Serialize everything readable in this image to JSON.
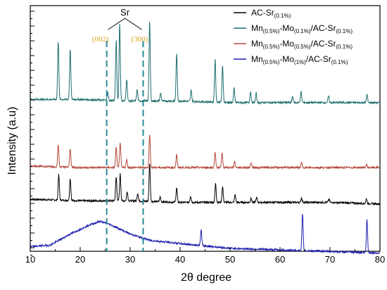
{
  "chart_data": {
    "type": "line",
    "xlabel": "2θ degree",
    "ylabel": "Intensity (a.u)",
    "xlim": [
      10,
      80
    ],
    "xticks": [
      10,
      20,
      30,
      40,
      50,
      60,
      70,
      80
    ],
    "grid": false,
    "legend_position": "top-right",
    "annotations": {
      "element": "Sr",
      "peak_labels": [
        {
          "text": "(002)",
          "x": 25.3,
          "color": "#d9a21b"
        },
        {
          "text": "(300)",
          "x": 32.6,
          "color": "#d9a21b"
        }
      ],
      "dashed_line_color": "#2a8a96"
    },
    "series": [
      {
        "legend_html": [
          "AC-Sr",
          "(0.1%)"
        ],
        "color": "#000000",
        "offset": 0.0,
        "background": [
          [
            10,
            0.04
          ],
          [
            20,
            0.03
          ],
          [
            30,
            0.03
          ],
          [
            40,
            0.02
          ],
          [
            50,
            0.02
          ],
          [
            60,
            0.02
          ],
          [
            70,
            0.02
          ],
          [
            80,
            0.01
          ]
        ],
        "peaks": [
          [
            15.7,
            0.16
          ],
          [
            18.0,
            0.14
          ],
          [
            27.2,
            0.15
          ],
          [
            28.0,
            0.17
          ],
          [
            29.4,
            0.06
          ],
          [
            31.5,
            0.05
          ],
          [
            33.9,
            0.24
          ],
          [
            36.0,
            0.03
          ],
          [
            39.3,
            0.09
          ],
          [
            42.1,
            0.04
          ],
          [
            47.1,
            0.12
          ],
          [
            48.5,
            0.1
          ],
          [
            51.0,
            0.05
          ],
          [
            54.2,
            0.03
          ],
          [
            55.3,
            0.03
          ],
          [
            64.3,
            0.03
          ],
          [
            69.8,
            0.02
          ],
          [
            77.3,
            0.03
          ]
        ]
      },
      {
        "legend_html": [
          "Mn",
          "(0.5%)",
          "-Mo",
          "(0.1%)",
          "/AC-Sr",
          "(0.1%)"
        ],
        "color": "#1f6e6e",
        "offset": 0.62,
        "background": [
          [
            10,
            0.05
          ],
          [
            20,
            0.05
          ],
          [
            30,
            0.04
          ],
          [
            40,
            0.04
          ],
          [
            50,
            0.03
          ],
          [
            60,
            0.03
          ],
          [
            70,
            0.03
          ],
          [
            80,
            0.03
          ]
        ],
        "peaks": [
          [
            15.6,
            0.37
          ],
          [
            18.0,
            0.32
          ],
          [
            25.5,
            0.05
          ],
          [
            27.2,
            0.38
          ],
          [
            27.9,
            0.49
          ],
          [
            29.3,
            0.14
          ],
          [
            31.4,
            0.07
          ],
          [
            33.9,
            0.5
          ],
          [
            36.1,
            0.05
          ],
          [
            39.3,
            0.3
          ],
          [
            42.2,
            0.07
          ],
          [
            47.0,
            0.27
          ],
          [
            48.5,
            0.23
          ],
          [
            50.8,
            0.09
          ],
          [
            54.1,
            0.07
          ],
          [
            55.2,
            0.06
          ],
          [
            62.5,
            0.04
          ],
          [
            64.2,
            0.07
          ],
          [
            69.7,
            0.04
          ],
          [
            77.4,
            0.05
          ]
        ]
      },
      {
        "legend_html": [
          "Mn",
          "(0.5%)",
          "-Mo",
          "(0.5%)",
          "/AC-Sr",
          "(0.1%)"
        ],
        "color": "#b5483a",
        "offset": 0.22,
        "background": [
          [
            10,
            0.03
          ],
          [
            20,
            0.02
          ],
          [
            30,
            0.02
          ],
          [
            40,
            0.02
          ],
          [
            50,
            0.02
          ],
          [
            60,
            0.02
          ],
          [
            70,
            0.02
          ],
          [
            80,
            0.02
          ]
        ],
        "peaks": [
          [
            15.6,
            0.14
          ],
          [
            18.0,
            0.12
          ],
          [
            27.2,
            0.13
          ],
          [
            28.0,
            0.16
          ],
          [
            29.3,
            0.05
          ],
          [
            33.9,
            0.21
          ],
          [
            39.3,
            0.08
          ],
          [
            47.0,
            0.1
          ],
          [
            48.4,
            0.09
          ],
          [
            50.9,
            0.04
          ],
          [
            54.2,
            0.03
          ],
          [
            64.3,
            0.03
          ],
          [
            77.3,
            0.02
          ]
        ]
      },
      {
        "legend_html": [
          "Mn",
          "(0.5%)",
          "-Mo",
          "(1%)",
          "/AC-Sr",
          "(0.1%)"
        ],
        "color": "#1f1fb0",
        "offset": -0.3,
        "background": [
          [
            10,
            0.04
          ],
          [
            14,
            0.05
          ],
          [
            18,
            0.12
          ],
          [
            22,
            0.18
          ],
          [
            24,
            0.2
          ],
          [
            26,
            0.18
          ],
          [
            30,
            0.12
          ],
          [
            34,
            0.08
          ],
          [
            40,
            0.06
          ],
          [
            50,
            0.03
          ],
          [
            60,
            0.02
          ],
          [
            70,
            0.01
          ],
          [
            80,
            0.0
          ]
        ],
        "peaks": [
          [
            44.2,
            0.1
          ],
          [
            64.5,
            0.23
          ],
          [
            77.4,
            0.21
          ]
        ]
      }
    ]
  }
}
